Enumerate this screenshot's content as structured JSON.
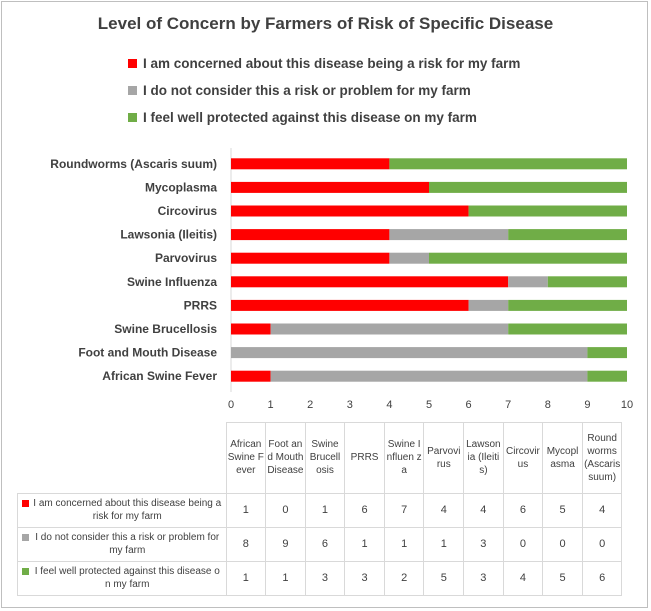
{
  "chart_data": {
    "type": "bar",
    "orientation": "horizontal",
    "stacked": true,
    "title": "Level of Concern by Farmers of Risk of Specific Disease",
    "categories": [
      "African Swine Fever",
      "Foot and Mouth Disease",
      "Swine Brucellosis",
      "PRRS",
      "Swine Influenza",
      "Parvovirus",
      "Lawsonia (Ileitis)",
      "Circovirus",
      "Mycoplasma",
      "Roundworms (Ascaris suum)"
    ],
    "series": [
      {
        "name": "I am concerned about this disease being a risk for my farm",
        "color": "#ff0000",
        "values": [
          1,
          0,
          1,
          6,
          7,
          4,
          4,
          6,
          5,
          4
        ]
      },
      {
        "name": "I do not consider this a risk or problem for my farm",
        "color": "#a6a6a6",
        "values": [
          8,
          9,
          6,
          1,
          1,
          1,
          3,
          0,
          0,
          0
        ]
      },
      {
        "name": "I feel well protected against this disease on my farm",
        "color": "#70ad47",
        "values": [
          1,
          1,
          3,
          3,
          2,
          5,
          3,
          4,
          5,
          6
        ]
      }
    ],
    "xlim": [
      0,
      10
    ],
    "x_ticks": [
      0,
      1,
      2,
      3,
      4,
      5,
      6,
      7,
      8,
      9,
      10
    ],
    "legend_position": "top",
    "grid": false,
    "data_table": {
      "column_headers": [
        "African Swine Fever",
        "Foot and Mouth Disease",
        "Swine Brucell osis",
        "PRRS",
        "Swine Influen za",
        "Parvovi rus",
        "Lawson ia (Ileitis)",
        "Circovir us",
        "Mycopl asma",
        "Round worms (Ascaris suum)"
      ],
      "row_headers": [
        "I am concerned about this disease being a risk for my farm",
        "I do not consider this a risk or problem for my farm",
        "I feel well protected against this disease on my farm"
      ]
    }
  }
}
